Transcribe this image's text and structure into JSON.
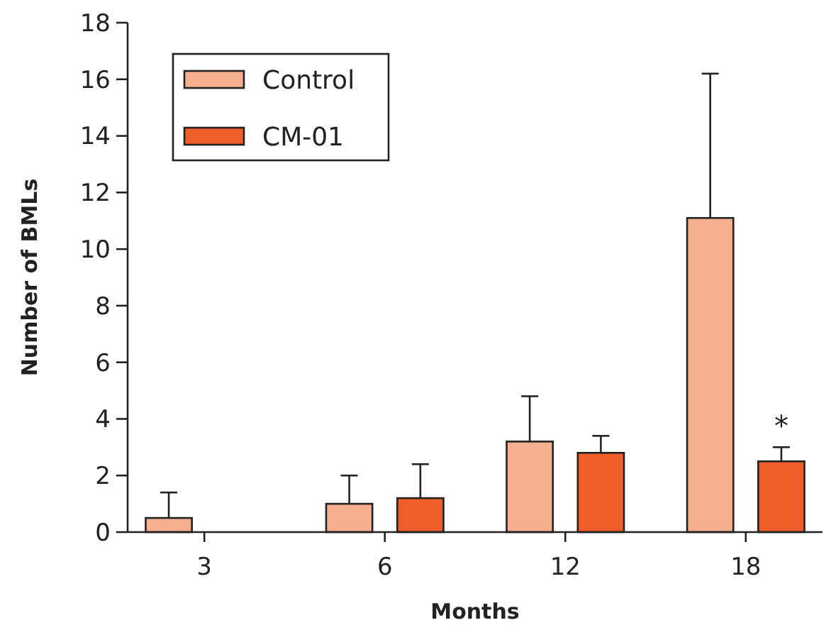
{
  "chart_data": {
    "type": "bar",
    "xlabel": "Months",
    "ylabel": "Number of BMLs",
    "categories": [
      "3",
      "6",
      "12",
      "18"
    ],
    "series": [
      {
        "name": "Control",
        "color": "#f5ae8e",
        "values": [
          0.5,
          1.0,
          3.2,
          11.1
        ],
        "errors": [
          [
            0.5,
            1.4
          ],
          [
            1.0,
            2.0
          ],
          [
            3.2,
            4.8
          ],
          [
            11.1,
            16.2
          ]
        ]
      },
      {
        "name": "CM-01",
        "color": "#ef5d2a",
        "values": [
          null,
          1.2,
          2.8,
          2.5
        ],
        "errors": [
          null,
          [
            1.2,
            2.4
          ],
          [
            2.8,
            3.4
          ],
          [
            2.5,
            3.0
          ]
        ]
      }
    ],
    "ylim": [
      0,
      18
    ],
    "yticks": [
      0,
      2,
      4,
      6,
      8,
      10,
      12,
      14,
      16,
      18
    ],
    "grid": false,
    "legend": "top left",
    "annotations": [
      "*"
    ]
  }
}
